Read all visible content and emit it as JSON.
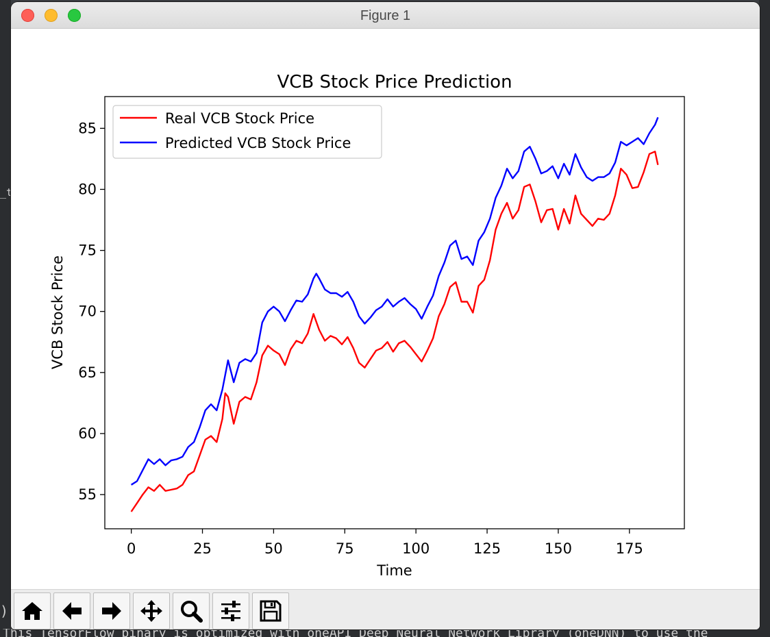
{
  "window": {
    "title": "Figure 1"
  },
  "background": {
    "side_text": "_t",
    "side_text2": "),",
    "console_text": "This TensorFlow binary is optimized with oneAPI Deep Neural Network Library (oneDNN) to use the"
  },
  "toolbar": {
    "buttons": [
      {
        "name": "home",
        "icon": "home-icon"
      },
      {
        "name": "back",
        "icon": "arrow-left-icon"
      },
      {
        "name": "forward",
        "icon": "arrow-right-icon"
      },
      {
        "name": "pan",
        "icon": "move-icon"
      },
      {
        "name": "zoom",
        "icon": "magnifier-icon"
      },
      {
        "name": "configure",
        "icon": "sliders-icon"
      },
      {
        "name": "save",
        "icon": "save-icon"
      }
    ]
  },
  "chart_data": {
    "type": "line",
    "title": "VCB Stock Price Prediction",
    "xlabel": "Time",
    "ylabel": "VCB Stock Price",
    "xlim": [
      -9.3,
      194.3
    ],
    "ylim": [
      52.2,
      87.6
    ],
    "xticks": [
      0,
      25,
      50,
      75,
      100,
      125,
      150,
      175
    ],
    "yticks": [
      55,
      60,
      65,
      70,
      75,
      80,
      85
    ],
    "grid": false,
    "legend_position": "upper-left",
    "series": [
      {
        "name": "Real VCB Stock Price",
        "color": "#ff0000",
        "x": [
          0,
          2,
          4,
          6,
          8,
          10,
          12,
          14,
          16,
          18,
          20,
          22,
          24,
          26,
          28,
          30,
          32,
          33,
          34,
          36,
          38,
          40,
          42,
          44,
          46,
          48,
          50,
          52,
          54,
          56,
          58,
          60,
          62,
          64,
          66,
          68,
          70,
          72,
          74,
          76,
          78,
          80,
          82,
          84,
          86,
          88,
          90,
          92,
          94,
          96,
          98,
          100,
          102,
          104,
          106,
          108,
          110,
          112,
          114,
          116,
          118,
          120,
          122,
          124,
          126,
          128,
          130,
          132,
          134,
          136,
          138,
          140,
          142,
          144,
          146,
          148,
          150,
          152,
          154,
          156,
          158,
          160,
          162,
          164,
          166,
          168,
          170,
          172,
          174,
          176,
          178,
          180,
          182,
          184,
          185
        ],
        "values": [
          53.6,
          54.3,
          55.0,
          55.6,
          55.3,
          55.8,
          55.3,
          55.4,
          55.5,
          55.8,
          56.6,
          56.9,
          58.2,
          59.5,
          59.8,
          59.3,
          61.2,
          63.3,
          63.0,
          60.8,
          62.6,
          63.0,
          62.8,
          64.2,
          66.4,
          67.2,
          66.8,
          66.5,
          65.6,
          66.9,
          67.6,
          67.4,
          68.2,
          69.8,
          68.5,
          67.6,
          68.0,
          67.8,
          67.3,
          67.9,
          67.0,
          65.8,
          65.4,
          66.1,
          66.8,
          67.0,
          67.5,
          66.7,
          67.4,
          67.6,
          67.1,
          66.5,
          65.9,
          66.8,
          67.8,
          69.6,
          70.6,
          72.0,
          72.4,
          70.8,
          70.8,
          69.9,
          72.1,
          72.6,
          74.2,
          76.7,
          78.0,
          78.9,
          77.6,
          78.3,
          80.2,
          80.4,
          79.0,
          77.3,
          78.3,
          78.4,
          76.7,
          78.4,
          77.2,
          79.5,
          78.0,
          77.5,
          77.0,
          77.6,
          77.5,
          78.0,
          79.5,
          81.7,
          81.2,
          80.1,
          80.2,
          81.4,
          82.9,
          83.1,
          82.0
        ]
      },
      {
        "name": "Predicted VCB Stock Price",
        "color": "#0000ff",
        "x": [
          0,
          2,
          4,
          6,
          8,
          10,
          12,
          14,
          16,
          18,
          20,
          22,
          24,
          26,
          28,
          30,
          32,
          34,
          36,
          38,
          40,
          42,
          44,
          46,
          48,
          50,
          52,
          54,
          56,
          58,
          60,
          62,
          64,
          65,
          66,
          68,
          70,
          72,
          74,
          76,
          78,
          80,
          82,
          84,
          86,
          88,
          90,
          92,
          94,
          96,
          98,
          100,
          102,
          104,
          106,
          108,
          110,
          112,
          114,
          116,
          118,
          120,
          122,
          124,
          126,
          128,
          130,
          132,
          134,
          136,
          138,
          140,
          142,
          144,
          146,
          148,
          150,
          152,
          154,
          156,
          158,
          160,
          162,
          164,
          166,
          168,
          170,
          172,
          174,
          176,
          178,
          180,
          182,
          184,
          185
        ],
        "values": [
          55.8,
          56.1,
          57.0,
          57.9,
          57.5,
          57.9,
          57.4,
          57.8,
          57.9,
          58.1,
          58.9,
          59.3,
          60.5,
          61.9,
          62.4,
          61.9,
          63.6,
          66.0,
          64.2,
          65.8,
          66.1,
          65.9,
          66.6,
          69.1,
          70.0,
          70.4,
          70.0,
          69.2,
          70.1,
          70.9,
          70.8,
          71.4,
          72.7,
          73.1,
          72.7,
          71.8,
          71.5,
          71.5,
          71.2,
          71.6,
          70.8,
          69.6,
          69.0,
          69.5,
          70.1,
          70.4,
          71.0,
          70.4,
          70.8,
          71.1,
          70.6,
          70.2,
          69.4,
          70.4,
          71.3,
          72.9,
          74.0,
          75.4,
          75.8,
          74.3,
          74.5,
          73.8,
          75.8,
          76.5,
          77.6,
          79.3,
          80.3,
          81.7,
          80.9,
          81.5,
          83.1,
          83.5,
          82.5,
          81.3,
          81.5,
          81.9,
          80.9,
          82.1,
          81.2,
          82.9,
          81.8,
          81.0,
          80.7,
          81.0,
          81.0,
          81.3,
          82.2,
          83.9,
          83.6,
          83.9,
          84.2,
          83.7,
          84.6,
          85.3,
          85.9
        ]
      }
    ]
  }
}
